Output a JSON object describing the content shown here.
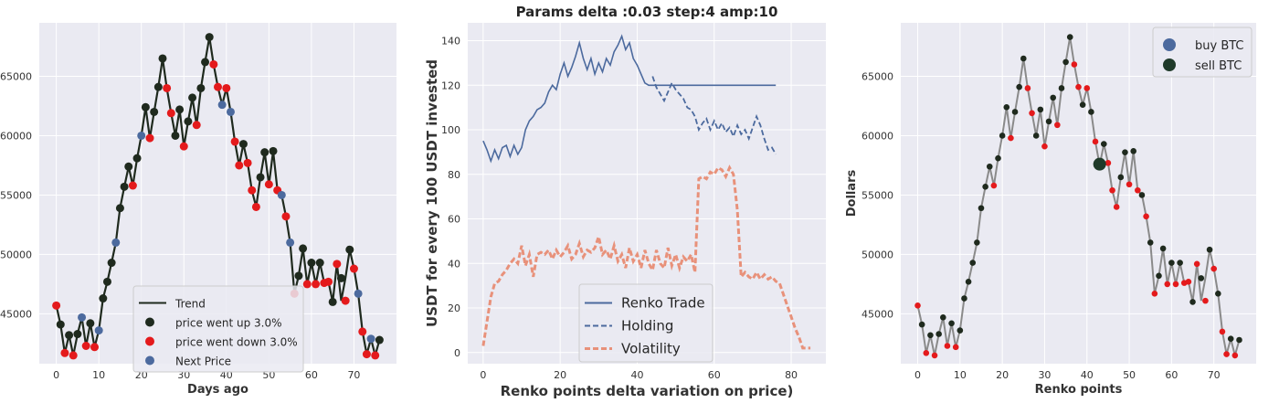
{
  "charts": {
    "left": {
      "type": "line",
      "xlabel": "Days ago",
      "ylabel": "",
      "xlim": [
        -4,
        80
      ],
      "ylim": [
        40800,
        69500
      ],
      "xticks": [
        0,
        10,
        20,
        30,
        40,
        50,
        60,
        70
      ],
      "yticks": [
        45000,
        50000,
        55000,
        60000,
        65000
      ],
      "legend": {
        "placement": "lower-center",
        "items": [
          {
            "label": "Trend",
            "kind": "line",
            "color": "#1f2a1e"
          },
          {
            "label": "price went up 3.0%",
            "kind": "dot",
            "color": "#1f2a1e"
          },
          {
            "label": "price went down 3.0%",
            "kind": "dot",
            "color": "#e41a1c"
          },
          {
            "label": "Next Price",
            "kind": "dot",
            "color": "#4c6a9e"
          }
        ]
      }
    },
    "middle": {
      "type": "line",
      "title": "Params delta :0.03 step:4 amp:10",
      "xlabel": "Renko points delta variation on price)",
      "ylabel": "USDT for every 100 USDT invested",
      "xlim": [
        -4,
        89
      ],
      "ylim": [
        -5,
        148
      ],
      "xticks": [
        0,
        20,
        40,
        60,
        80
      ],
      "yticks": [
        0,
        20,
        40,
        60,
        80,
        100,
        120,
        140
      ],
      "legend": {
        "placement": "lower-center",
        "items": [
          {
            "label": "Renko Trade",
            "kind": "line",
            "color": "#4c6a9e"
          },
          {
            "label": "Holding",
            "kind": "dash",
            "color": "#4c6a9e"
          },
          {
            "label": "Volatility",
            "kind": "dash-thick",
            "color": "#e8917a"
          }
        ]
      }
    },
    "right": {
      "type": "line",
      "xlabel": "Renko points",
      "ylabel": "Dollars",
      "xlim": [
        -4,
        80
      ],
      "ylim": [
        40800,
        69500
      ],
      "xticks": [
        0,
        10,
        20,
        30,
        40,
        50,
        60,
        70
      ],
      "yticks": [
        45000,
        50000,
        55000,
        60000,
        65000
      ],
      "legend": {
        "placement": "top-right",
        "items": [
          {
            "label": "buy BTC",
            "kind": "bigdot",
            "color": "#4c6a9e"
          },
          {
            "label": "sell BTC",
            "kind": "bigdot",
            "color": "#1f3a2a"
          }
        ]
      }
    }
  },
  "chart_data": [
    {
      "type": "line",
      "title": "",
      "xlabel": "Days ago",
      "ylabel": "",
      "xlim": [
        -4,
        80
      ],
      "ylim": [
        40800,
        69500
      ],
      "grid": true,
      "series": [
        {
          "name": "Trend",
          "x": [
            0,
            1,
            2,
            3,
            4,
            5,
            6,
            7,
            8,
            9,
            10,
            11,
            12,
            13,
            14,
            15,
            16,
            17,
            18,
            19,
            20,
            21,
            22,
            23,
            24,
            25,
            26,
            27,
            28,
            29,
            30,
            31,
            32,
            33,
            34,
            35,
            36,
            37,
            38,
            39,
            40,
            41,
            42,
            43,
            44,
            45,
            46,
            47,
            48,
            49,
            50,
            51,
            52,
            53,
            54,
            55,
            56,
            57,
            58,
            59,
            60,
            61,
            62,
            63,
            64,
            65,
            66,
            67,
            68,
            69,
            70,
            71,
            72,
            73,
            74,
            75,
            76
          ],
          "y": [
            45700,
            44100,
            41700,
            43200,
            41500,
            43300,
            44700,
            42300,
            44200,
            42200,
            43600,
            46300,
            47700,
            49300,
            51000,
            53900,
            55700,
            57400,
            55800,
            58100,
            60000,
            62400,
            59800,
            62000,
            64100,
            66500,
            64000,
            61900,
            60000,
            62200,
            59100,
            61200,
            63200,
            60900,
            64000,
            66200,
            68300,
            66000,
            64100,
            62600,
            64000,
            62000,
            59500,
            57500,
            59300,
            57700,
            55400,
            54000,
            56500,
            58600,
            55900,
            58700,
            55400,
            55000,
            53200,
            51000,
            46700,
            48200,
            50500,
            47500,
            49300,
            47500,
            49300,
            47600,
            47700,
            46000,
            49200,
            46100,
            48000,
            50400,
            48800,
            46700,
            43500,
            41600,
            42900,
            41500,
            42800
          ]
        },
        {
          "name": "price went up 3.0%",
          "x": [
            1,
            3,
            5,
            8,
            11,
            12,
            13,
            15,
            16,
            17,
            19,
            21,
            23,
            24,
            25,
            28,
            29,
            31,
            32,
            34,
            35,
            36,
            44,
            48,
            49,
            51,
            57,
            58,
            60,
            62,
            65,
            67,
            69,
            76
          ],
          "y": [
            44100,
            43200,
            43300,
            44200,
            46300,
            47700,
            49300,
            53900,
            55700,
            57400,
            58100,
            62400,
            62000,
            64100,
            66500,
            60000,
            62200,
            61200,
            63200,
            64000,
            66200,
            68300,
            59300,
            56500,
            58600,
            58700,
            48200,
            50500,
            49300,
            49300,
            46000,
            48000,
            50400,
            42800
          ]
        },
        {
          "name": "price went down 3.0%",
          "x": [
            0,
            2,
            4,
            7,
            9,
            18,
            22,
            26,
            27,
            30,
            33,
            37,
            38,
            40,
            42,
            43,
            45,
            46,
            47,
            50,
            52,
            54,
            56,
            59,
            61,
            63,
            64,
            66,
            68,
            70,
            72,
            73,
            75
          ],
          "y": [
            45700,
            41700,
            41500,
            42300,
            42200,
            55800,
            59800,
            64000,
            61900,
            59100,
            60900,
            66000,
            64100,
            64000,
            59500,
            57500,
            57700,
            55400,
            54000,
            55900,
            55400,
            53200,
            46700,
            47500,
            47500,
            47600,
            47700,
            49200,
            46100,
            48800,
            43500,
            41600,
            41500
          ]
        },
        {
          "name": "Next Price",
          "x": [
            6,
            10,
            14,
            20,
            39,
            41,
            53,
            55,
            71,
            74
          ],
          "y": [
            44700,
            43600,
            51000,
            60000,
            62600,
            62000,
            55000,
            51000,
            46700,
            42900
          ]
        }
      ]
    },
    {
      "type": "line",
      "title": "Params delta :0.03 step:4 amp:10",
      "xlabel": "Renko points delta variation on price)",
      "ylabel": "USDT for every 100 USDT invested",
      "xlim": [
        -4,
        89
      ],
      "ylim": [
        -5,
        148
      ],
      "grid": true,
      "series": [
        {
          "name": "Renko Trade",
          "x": [
            0,
            1,
            2,
            3,
            4,
            5,
            6,
            7,
            8,
            9,
            10,
            11,
            12,
            13,
            14,
            15,
            16,
            17,
            18,
            19,
            20,
            21,
            22,
            23,
            24,
            25,
            26,
            27,
            28,
            29,
            30,
            31,
            32,
            33,
            34,
            35,
            36,
            37,
            38,
            39,
            40,
            41,
            42,
            43,
            44,
            45,
            46,
            47,
            48,
            49,
            50,
            51,
            52,
            53,
            54,
            55,
            56,
            57,
            58,
            59,
            60,
            61,
            62,
            63,
            64,
            65,
            66,
            67,
            68,
            69,
            70,
            71,
            72,
            73,
            74,
            75,
            76
          ],
          "y": [
            95,
            91,
            86,
            91,
            87,
            92,
            93,
            88,
            93,
            89,
            92,
            100,
            104,
            106,
            109,
            110,
            112,
            117,
            120,
            118,
            125,
            130,
            124,
            128,
            133,
            139,
            132,
            127,
            132,
            125,
            130,
            126,
            132,
            129,
            135,
            138,
            142,
            136,
            139,
            132,
            129,
            125,
            121,
            120,
            120,
            120,
            120,
            120,
            120,
            120,
            120,
            120,
            120,
            120,
            120,
            120,
            120,
            120,
            120,
            120,
            120,
            120,
            120,
            120,
            120,
            120,
            120,
            120,
            120,
            120,
            120,
            120,
            120,
            120,
            120,
            120,
            120
          ]
        },
        {
          "name": "Holding",
          "x": [
            44,
            45,
            46,
            47,
            48,
            49,
            50,
            51,
            52,
            53,
            54,
            55,
            56,
            57,
            58,
            59,
            60,
            61,
            62,
            63,
            64,
            65,
            66,
            67,
            68,
            69,
            70,
            71,
            72,
            73,
            74,
            75,
            76
          ],
          "y": [
            124,
            119,
            116,
            113,
            117,
            121,
            118,
            116,
            114,
            110,
            109,
            106,
            100,
            103,
            105,
            100,
            104,
            100,
            103,
            99,
            101,
            97,
            102,
            98,
            100,
            96,
            101,
            106,
            102,
            96,
            91,
            92,
            89
          ]
        },
        {
          "name": "Volatility",
          "x": [
            0,
            1,
            2,
            3,
            4,
            5,
            6,
            7,
            8,
            9,
            10,
            11,
            12,
            13,
            14,
            15,
            16,
            17,
            18,
            19,
            20,
            21,
            22,
            23,
            24,
            25,
            26,
            27,
            28,
            29,
            30,
            31,
            32,
            33,
            34,
            35,
            36,
            37,
            38,
            39,
            40,
            41,
            42,
            43,
            44,
            45,
            46,
            47,
            48,
            49,
            50,
            51,
            52,
            53,
            54,
            55,
            56,
            57,
            58,
            59,
            60,
            61,
            62,
            63,
            64,
            65,
            66,
            67,
            68,
            69,
            70,
            71,
            72,
            73,
            74,
            75,
            76,
            77,
            78,
            79,
            80,
            81,
            82,
            83,
            84,
            85
          ],
          "y": [
            3,
            14,
            25,
            31,
            32,
            35,
            37,
            40,
            42,
            40,
            48,
            39,
            44,
            34,
            44,
            45,
            44,
            46,
            42,
            46,
            43,
            45,
            48,
            42,
            44,
            49,
            43,
            46,
            45,
            47,
            52,
            44,
            46,
            42,
            48,
            41,
            44,
            38,
            47,
            41,
            44,
            38,
            46,
            40,
            37,
            46,
            40,
            38,
            47,
            39,
            44,
            38,
            43,
            41,
            44,
            36,
            78,
            79,
            78,
            81,
            80,
            83,
            82,
            79,
            83,
            80,
            64,
            34,
            36,
            34,
            33,
            36,
            33,
            35,
            33,
            34,
            32,
            31,
            26,
            21,
            16,
            11,
            7,
            2,
            2,
            2
          ]
        }
      ]
    },
    {
      "type": "line",
      "title": "",
      "xlabel": "Renko points",
      "ylabel": "Dollars",
      "xlim": [
        -4,
        80
      ],
      "ylim": [
        40800,
        69500
      ],
      "grid": true,
      "series": [
        {
          "name": "buy BTC",
          "x": [],
          "y": []
        },
        {
          "name": "sell BTC",
          "x": [
            43
          ],
          "y": [
            57600
          ]
        }
      ]
    }
  ]
}
